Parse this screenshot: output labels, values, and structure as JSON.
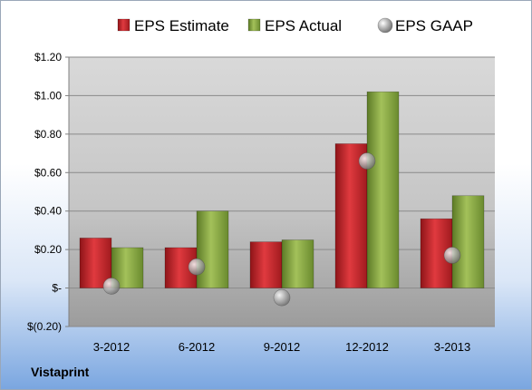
{
  "chart_data": {
    "type": "bar",
    "categories": [
      "3-2012",
      "6-2012",
      "9-2012",
      "12-2012",
      "3-2013"
    ],
    "series": [
      {
        "name": "EPS Estimate",
        "kind": "bar",
        "color": "#c0262b",
        "values": [
          0.26,
          0.21,
          0.24,
          0.75,
          0.36
        ]
      },
      {
        "name": "EPS Actual",
        "kind": "bar",
        "color": "#86a244",
        "values": [
          0.21,
          0.4,
          0.25,
          1.02,
          0.48
        ]
      },
      {
        "name": "EPS GAAP",
        "kind": "marker",
        "color": "#b8b8b8",
        "values": [
          0.01,
          0.11,
          -0.05,
          0.66,
          0.17
        ]
      }
    ],
    "y_ticks": [
      {
        "value": 1.2,
        "label": "$1.20"
      },
      {
        "value": 1.0,
        "label": "$1.00"
      },
      {
        "value": 0.8,
        "label": "$0.80"
      },
      {
        "value": 0.6,
        "label": "$0.60"
      },
      {
        "value": 0.4,
        "label": "$0.40"
      },
      {
        "value": 0.2,
        "label": "$0.20"
      },
      {
        "value": 0.0,
        "label": "$-"
      },
      {
        "value": -0.2,
        "label": "$(0.20)"
      }
    ],
    "ylim": [
      -0.2,
      1.2
    ],
    "grid": true,
    "legend_position": "top"
  },
  "company": "Vistaprint"
}
